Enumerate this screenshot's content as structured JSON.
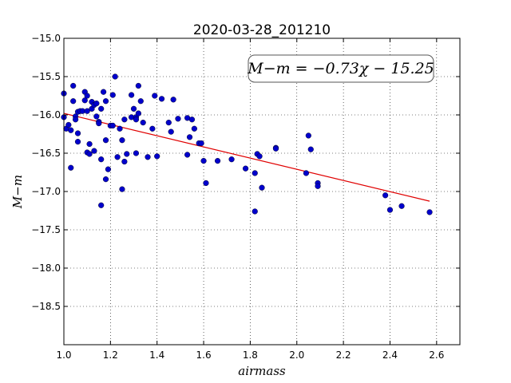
{
  "chart_data": {
    "type": "scatter",
    "title": "2020-03-28_201210",
    "xlabel": "airmass",
    "ylabel": "M−m",
    "xlim": [
      1.0,
      2.7
    ],
    "ylim": [
      -19.0,
      -15.0
    ],
    "y_inverted": true,
    "xticks": [
      "1.0",
      "1.2",
      "1.4",
      "1.6",
      "1.8",
      "2.0",
      "2.2",
      "2.4",
      "2.6"
    ],
    "yticks": [
      "−15.0",
      "−15.5",
      "−16.0",
      "−16.5",
      "−17.0",
      "−17.5",
      "−18.0",
      "−18.5"
    ],
    "grid": true,
    "annotation": "M−m = −0.73χ − 15.25",
    "fit": {
      "slope": -0.73,
      "intercept": -15.25,
      "x_range": [
        1.0,
        2.57
      ],
      "color": "#e00000"
    },
    "point_color": "#0000cc",
    "points": [
      [
        1.0,
        -15.72
      ],
      [
        1.0,
        -16.03
      ],
      [
        1.01,
        -16.18
      ],
      [
        1.02,
        -16.13
      ],
      [
        1.03,
        -16.2
      ],
      [
        1.03,
        -16.69
      ],
      [
        1.04,
        -15.62
      ],
      [
        1.04,
        -15.82
      ],
      [
        1.05,
        -16.02
      ],
      [
        1.05,
        -16.06
      ],
      [
        1.06,
        -16.24
      ],
      [
        1.06,
        -16.35
      ],
      [
        1.06,
        -15.96
      ],
      [
        1.07,
        -15.95
      ],
      [
        1.08,
        -15.95
      ],
      [
        1.09,
        -15.7
      ],
      [
        1.09,
        -15.81
      ],
      [
        1.1,
        -15.75
      ],
      [
        1.1,
        -16.49
      ],
      [
        1.1,
        -15.95
      ],
      [
        1.11,
        -16.51
      ],
      [
        1.11,
        -16.38
      ],
      [
        1.12,
        -15.83
      ],
      [
        1.12,
        -15.92
      ],
      [
        1.13,
        -16.47
      ],
      [
        1.13,
        -15.87
      ],
      [
        1.14,
        -15.85
      ],
      [
        1.14,
        -16.02
      ],
      [
        1.15,
        -16.09
      ],
      [
        1.15,
        -16.11
      ],
      [
        1.16,
        -15.92
      ],
      [
        1.16,
        -16.58
      ],
      [
        1.16,
        -17.18
      ],
      [
        1.17,
        -15.7
      ],
      [
        1.18,
        -15.82
      ],
      [
        1.18,
        -16.33
      ],
      [
        1.18,
        -16.84
      ],
      [
        1.19,
        -16.71
      ],
      [
        1.2,
        -16.14
      ],
      [
        1.21,
        -15.74
      ],
      [
        1.21,
        -16.14
      ],
      [
        1.22,
        -15.5
      ],
      [
        1.23,
        -16.55
      ],
      [
        1.24,
        -16.18
      ],
      [
        1.25,
        -16.97
      ],
      [
        1.25,
        -16.33
      ],
      [
        1.26,
        -16.06
      ],
      [
        1.26,
        -16.61
      ],
      [
        1.27,
        -16.51
      ],
      [
        1.29,
        -16.03
      ],
      [
        1.29,
        -15.74
      ],
      [
        1.3,
        -15.92
      ],
      [
        1.31,
        -16.03
      ],
      [
        1.31,
        -16.06
      ],
      [
        1.31,
        -16.5
      ],
      [
        1.32,
        -15.62
      ],
      [
        1.32,
        -15.98
      ],
      [
        1.33,
        -15.82
      ],
      [
        1.34,
        -16.1
      ],
      [
        1.36,
        -16.55
      ],
      [
        1.38,
        -16.18
      ],
      [
        1.39,
        -15.75
      ],
      [
        1.4,
        -16.54
      ],
      [
        1.42,
        -15.79
      ],
      [
        1.45,
        -16.1
      ],
      [
        1.46,
        -16.22
      ],
      [
        1.47,
        -15.8
      ],
      [
        1.49,
        -16.05
      ],
      [
        1.53,
        -16.04
      ],
      [
        1.53,
        -16.52
      ],
      [
        1.54,
        -16.29
      ],
      [
        1.55,
        -16.06
      ],
      [
        1.56,
        -16.18
      ],
      [
        1.58,
        -16.37
      ],
      [
        1.59,
        -16.37
      ],
      [
        1.6,
        -16.6
      ],
      [
        1.61,
        -16.89
      ],
      [
        1.66,
        -16.6
      ],
      [
        1.72,
        -16.58
      ],
      [
        1.78,
        -16.7
      ],
      [
        1.82,
        -16.76
      ],
      [
        1.82,
        -17.26
      ],
      [
        1.83,
        -16.51
      ],
      [
        1.84,
        -16.54
      ],
      [
        1.85,
        -16.95
      ],
      [
        1.91,
        -16.43
      ],
      [
        1.91,
        -16.44
      ],
      [
        2.04,
        -16.76
      ],
      [
        2.05,
        -16.27
      ],
      [
        2.06,
        -16.45
      ],
      [
        2.09,
        -16.89
      ],
      [
        2.09,
        -16.93
      ],
      [
        2.38,
        -17.05
      ],
      [
        2.4,
        -17.24
      ],
      [
        2.45,
        -17.19
      ],
      [
        2.57,
        -17.27
      ]
    ]
  }
}
